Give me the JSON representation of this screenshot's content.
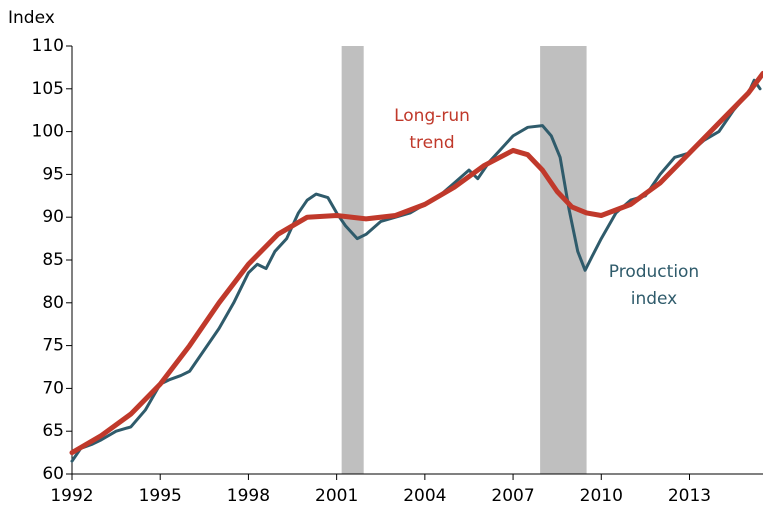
{
  "chart_data": {
    "type": "line",
    "y_label": "Index",
    "xlim": [
      1992,
      2015.5
    ],
    "xticks": [
      1992,
      1995,
      1998,
      2001,
      2004,
      2007,
      2010,
      2013
    ],
    "ylim": [
      60,
      110
    ],
    "yticks": [
      60,
      65,
      70,
      75,
      80,
      85,
      90,
      95,
      100,
      105,
      110
    ],
    "grid": false,
    "recessions": [
      [
        2001.17,
        2001.92
      ],
      [
        2007.92,
        2009.5
      ]
    ],
    "recession_color": "#bfbfbf",
    "series": [
      {
        "name": "Production index",
        "color": "#2f5b6b",
        "width": 3,
        "x": [
          1992.0,
          1992.3,
          1992.7,
          1993.0,
          1993.5,
          1994.0,
          1994.5,
          1995.0,
          1995.3,
          1995.7,
          1996.0,
          1996.5,
          1997.0,
          1997.5,
          1998.0,
          1998.3,
          1998.6,
          1998.9,
          1999.3,
          1999.7,
          2000.0,
          2000.3,
          2000.7,
          2001.0,
          2001.3,
          2001.7,
          2002.0,
          2002.5,
          2003.0,
          2003.5,
          2004.0,
          2004.5,
          2005.0,
          2005.5,
          2005.8,
          2006.2,
          2006.6,
          2007.0,
          2007.5,
          2008.0,
          2008.3,
          2008.6,
          2008.9,
          2009.2,
          2009.45,
          2009.7,
          2010.0,
          2010.5,
          2011.0,
          2011.5,
          2012.0,
          2012.5,
          2013.0,
          2013.5,
          2014.0,
          2014.5,
          2015.0,
          2015.2,
          2015.4
        ],
        "values": [
          61.5,
          63,
          63.5,
          64,
          65,
          65.5,
          67.5,
          70.5,
          71,
          71.5,
          72,
          74.5,
          77,
          80,
          83.5,
          84.5,
          84,
          86,
          87.5,
          90.5,
          92,
          92.7,
          92.3,
          90.5,
          89,
          87.5,
          88,
          89.5,
          90,
          90.5,
          91.5,
          92.5,
          94,
          95.5,
          94.5,
          96.5,
          98,
          99.5,
          100.5,
          100.7,
          99.5,
          97,
          91,
          86,
          83.8,
          85.5,
          87.5,
          90.5,
          92,
          92.5,
          95,
          97,
          97.5,
          99,
          100,
          102.5,
          104.5,
          106,
          105
        ]
      },
      {
        "name": "Long-run trend",
        "color": "#c0392b",
        "width": 5,
        "x": [
          1992,
          1993,
          1994,
          1995,
          1996,
          1997,
          1998,
          1999,
          2000,
          2001,
          2002,
          2003,
          2004,
          2005,
          2006,
          2007,
          2007.5,
          2008,
          2008.5,
          2009,
          2009.5,
          2010,
          2011,
          2012,
          2013,
          2014,
          2015,
          2015.5
        ],
        "values": [
          62.5,
          64.5,
          67,
          70.5,
          75,
          80,
          84.5,
          88,
          90,
          90.2,
          89.8,
          90.2,
          91.5,
          93.5,
          96,
          97.8,
          97.3,
          95.5,
          93,
          91.2,
          90.5,
          90.2,
          91.5,
          94,
          97.5,
          101,
          104.5,
          106.8
        ]
      }
    ],
    "annotations": [
      {
        "lines": [
          "Long-run",
          "trend"
        ],
        "series": 1
      },
      {
        "lines": [
          "Production",
          "index"
        ],
        "series": 0
      }
    ]
  }
}
